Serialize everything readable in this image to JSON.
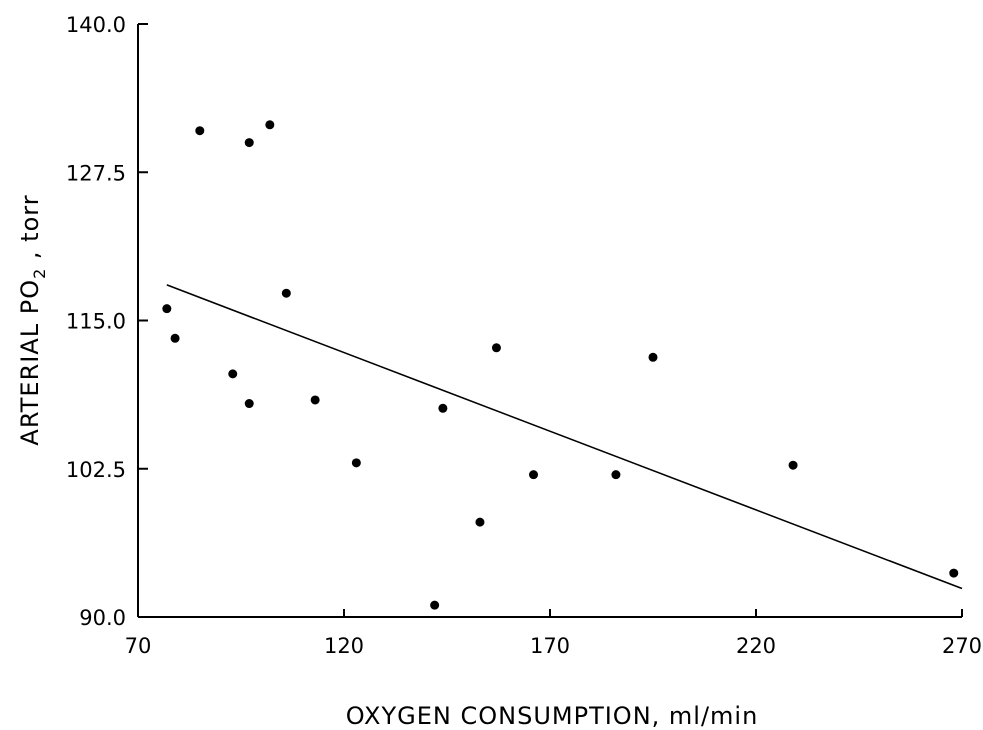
{
  "chart_data": {
    "type": "scatter",
    "title": "",
    "xlabel": "OXYGEN CONSUMPTION, ml/min",
    "ylabel": {
      "prefix": "ARTERIAL  PO",
      "subscript": "2",
      "suffix": " ,  torr"
    },
    "xlim": [
      70,
      270
    ],
    "ylim": [
      90,
      140
    ],
    "xticks": [
      70,
      120,
      170,
      220,
      270
    ],
    "yticks": [
      90.0,
      102.5,
      115.0,
      127.5,
      140.0
    ],
    "xtick_labels": [
      "70",
      "120",
      "170",
      "220",
      "270"
    ],
    "ytick_labels": [
      "90.0",
      "102.5",
      "115.0",
      "127.5",
      "140.0"
    ],
    "grid": false,
    "legend": "none",
    "points": [
      {
        "x": 77,
        "y": 116.0
      },
      {
        "x": 79,
        "y": 113.5
      },
      {
        "x": 85,
        "y": 131.0
      },
      {
        "x": 93,
        "y": 110.5
      },
      {
        "x": 97,
        "y": 130.0
      },
      {
        "x": 97,
        "y": 108.0
      },
      {
        "x": 102,
        "y": 131.5
      },
      {
        "x": 106,
        "y": 117.3
      },
      {
        "x": 113,
        "y": 108.3
      },
      {
        "x": 123,
        "y": 103.0
      },
      {
        "x": 142,
        "y": 91.0
      },
      {
        "x": 144,
        "y": 107.6
      },
      {
        "x": 153,
        "y": 98.0
      },
      {
        "x": 157,
        "y": 112.7
      },
      {
        "x": 166,
        "y": 102.0
      },
      {
        "x": 186,
        "y": 102.0
      },
      {
        "x": 195,
        "y": 111.9
      },
      {
        "x": 229,
        "y": 102.8
      },
      {
        "x": 268,
        "y": 93.7
      }
    ],
    "trend_line": {
      "x": [
        77,
        270
      ],
      "y": [
        118.0,
        92.4
      ]
    }
  }
}
